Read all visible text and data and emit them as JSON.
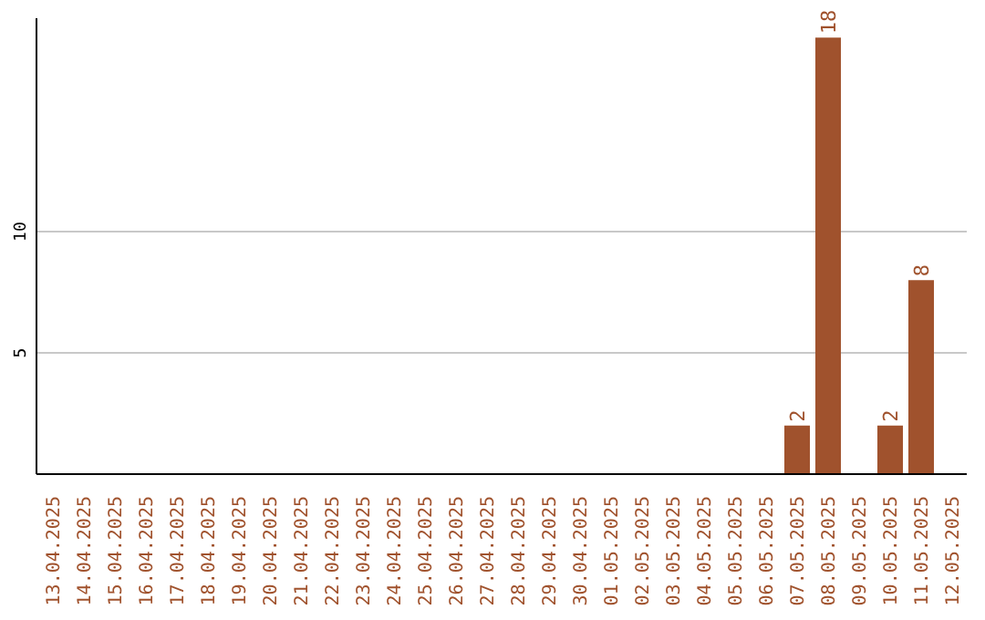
{
  "chart_data": {
    "type": "bar",
    "categories": [
      "13.04.2025",
      "14.04.2025",
      "15.04.2025",
      "16.04.2025",
      "17.04.2025",
      "18.04.2025",
      "19.04.2025",
      "20.04.2025",
      "21.04.2025",
      "22.04.2025",
      "23.04.2025",
      "24.04.2025",
      "25.04.2025",
      "26.04.2025",
      "27.04.2025",
      "28.04.2025",
      "29.04.2025",
      "30.04.2025",
      "01.05.2025",
      "02.05.2025",
      "03.05.2025",
      "04.05.2025",
      "05.05.2025",
      "06.05.2025",
      "07.05.2025",
      "08.05.2025",
      "09.05.2025",
      "10.05.2025",
      "11.05.2025",
      "12.05.2025"
    ],
    "values": [
      0,
      0,
      0,
      0,
      0,
      0,
      0,
      0,
      0,
      0,
      0,
      0,
      0,
      0,
      0,
      0,
      0,
      0,
      0,
      0,
      0,
      0,
      0,
      0,
      2,
      18,
      0,
      2,
      8,
      0
    ],
    "value_labels": [
      null,
      null,
      null,
      null,
      null,
      null,
      null,
      null,
      null,
      null,
      null,
      null,
      null,
      null,
      null,
      null,
      null,
      null,
      null,
      null,
      null,
      null,
      null,
      null,
      "2",
      "18",
      null,
      "2",
      "8",
      null
    ],
    "color": "#a0522d",
    "ylim": [
      0,
      18.8
    ],
    "yticks": [
      5,
      10
    ],
    "grid": "y"
  }
}
